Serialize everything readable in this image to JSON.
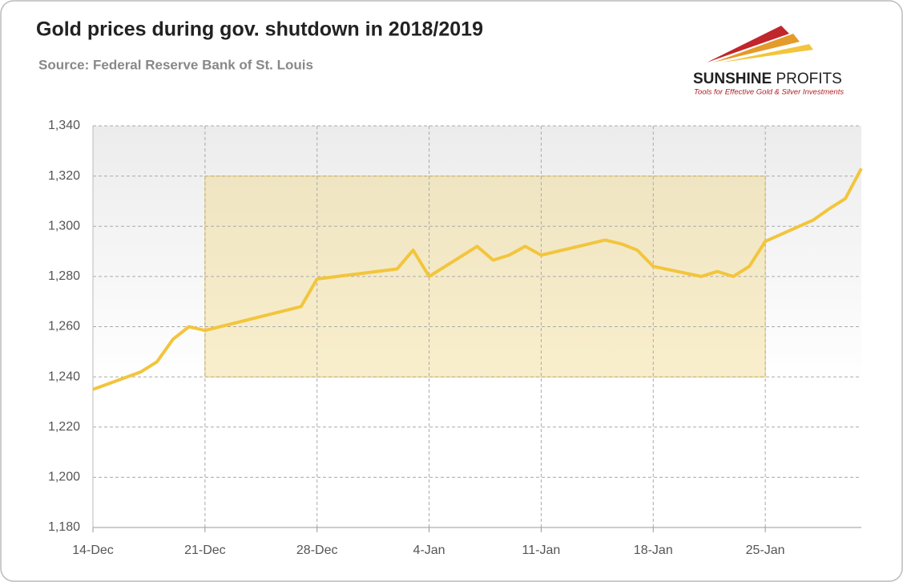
{
  "chart_data": {
    "type": "line",
    "title": "Gold prices during gov. shutdown in 2018/2019",
    "subtitle": "Source: Federal Reserve Bank of St. Louis",
    "x": [
      "14-Dec",
      "17-Dec",
      "18-Dec",
      "19-Dec",
      "20-Dec",
      "21-Dec",
      "27-Dec",
      "28-Dec",
      "2-Jan",
      "3-Jan",
      "4-Jan",
      "7-Jan",
      "8-Jan",
      "9-Jan",
      "10-Jan",
      "11-Jan",
      "14-Jan",
      "15-Jan",
      "16-Jan",
      "17-Jan",
      "18-Jan",
      "21-Jan",
      "22-Jan",
      "23-Jan",
      "24-Jan",
      "25-Jan",
      "28-Jan",
      "29-Jan",
      "30-Jan",
      "31-Jan"
    ],
    "values": [
      1235,
      1242,
      1246,
      1255,
      1260,
      1258.5,
      1268,
      1279,
      1283,
      1290.5,
      1280,
      1292,
      1286.5,
      1288.5,
      1292,
      1288.5,
      1293,
      1294.5,
      1293,
      1290.5,
      1284,
      1280,
      1282,
      1280,
      1284,
      1294,
      1302.5,
      1307,
      1311,
      1323
    ],
    "color": "#f2c53d",
    "xlim": [
      "14-Dec",
      "31-Jan"
    ],
    "xticks": [
      "14-Dec",
      "21-Dec",
      "28-Dec",
      "4-Jan",
      "11-Jan",
      "18-Jan",
      "25-Jan"
    ],
    "ylim": [
      1180,
      1340
    ],
    "yticks": [
      {
        "value": 1180,
        "label": "1,180"
      },
      {
        "value": 1200,
        "label": "1,200"
      },
      {
        "value": 1220,
        "label": "1,220"
      },
      {
        "value": 1240,
        "label": "1,240"
      },
      {
        "value": 1260,
        "label": "1,260"
      },
      {
        "value": 1280,
        "label": "1,280"
      },
      {
        "value": 1300,
        "label": "1,300"
      },
      {
        "value": 1320,
        "label": "1,320"
      },
      {
        "value": 1340,
        "label": "1,340"
      }
    ],
    "grid": true,
    "shaded_region": {
      "x": [
        "21-Dec",
        "25-Jan"
      ],
      "y": [
        1240,
        1320
      ],
      "color": "#f2d270"
    }
  },
  "logo": {
    "name_bold": "SUNSHINE",
    "name_light": "PROFITS",
    "tagline": "Tools for Effective Gold & Silver Investments"
  }
}
